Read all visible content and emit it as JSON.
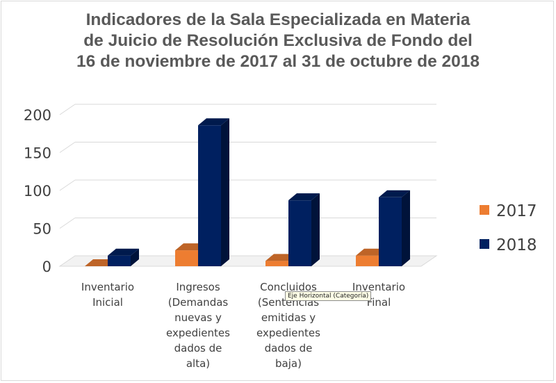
{
  "chart_data": {
    "type": "bar",
    "title_lines": [
      "Indicadores de la Sala Especializada en Materia",
      "de Juicio de Resolución Exclusiva de Fondo del",
      "16 de noviembre de 2017 al 31 de octubre de 2018"
    ],
    "categories": [
      [
        "Inventario",
        "Inicial"
      ],
      [
        "Ingresos",
        "(Demandas",
        "nuevas y",
        "expedientes",
        "dados de",
        "alta)"
      ],
      [
        "Concluidos",
        "(Sentencias",
        "emitidas y",
        "expedientes",
        "dados de",
        "baja)"
      ],
      [
        "Inventario",
        "Final"
      ]
    ],
    "series": [
      {
        "name": "2017",
        "color": "#ed7d31",
        "values": [
          0,
          21,
          7,
          14
        ]
      },
      {
        "name": "2018",
        "color": "#002060",
        "values": [
          14,
          186,
          87,
          91
        ]
      }
    ],
    "ylim": [
      0,
      200
    ],
    "yticks": [
      "0",
      "50",
      "100",
      "150",
      "200"
    ],
    "grid": true,
    "legend_position": "right",
    "three_d": true
  },
  "tooltip": {
    "text": "Eje Horizontal (Categoría)"
  }
}
